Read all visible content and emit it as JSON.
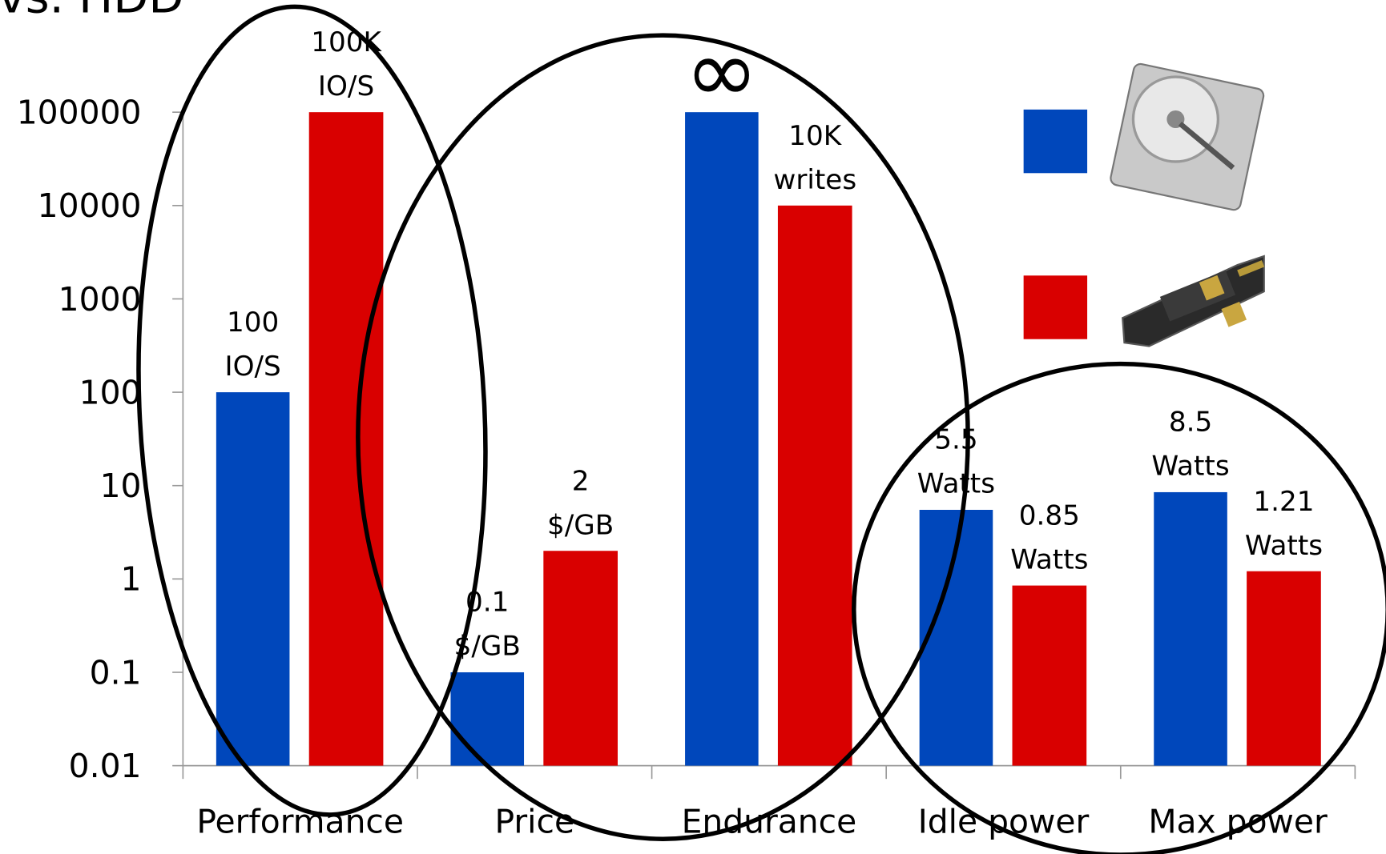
{
  "chart_data": {
    "type": "bar",
    "title": "vs. HDD",
    "categories": [
      "Performance",
      "Price",
      "Endurance",
      "Idle power",
      "Max power"
    ],
    "series": [
      {
        "color": "#0047bb",
        "values": [
          100,
          0.1,
          100000,
          5.5,
          8.5
        ],
        "value_labels": [
          "100\nIO/S",
          "0.1\n$/GB",
          null,
          "5.5\nWatts",
          "8.5\nWatts"
        ]
      },
      {
        "color": "#d90000",
        "values": [
          100000,
          2,
          10000,
          0.85,
          1.21
        ],
        "value_labels": [
          "100K\nIO/S",
          "2\n$/GB",
          "10K\nwrites",
          "0.85\nWatts",
          "1.21\nWatts"
        ]
      }
    ],
    "annotations": [
      {
        "text": "∞",
        "series": 0,
        "category": 2
      }
    ],
    "ylim": [
      0.01,
      100000
    ],
    "log_scale": true,
    "yticks": [
      0.01,
      0.1,
      1,
      10,
      100,
      1000,
      10000,
      100000
    ]
  }
}
